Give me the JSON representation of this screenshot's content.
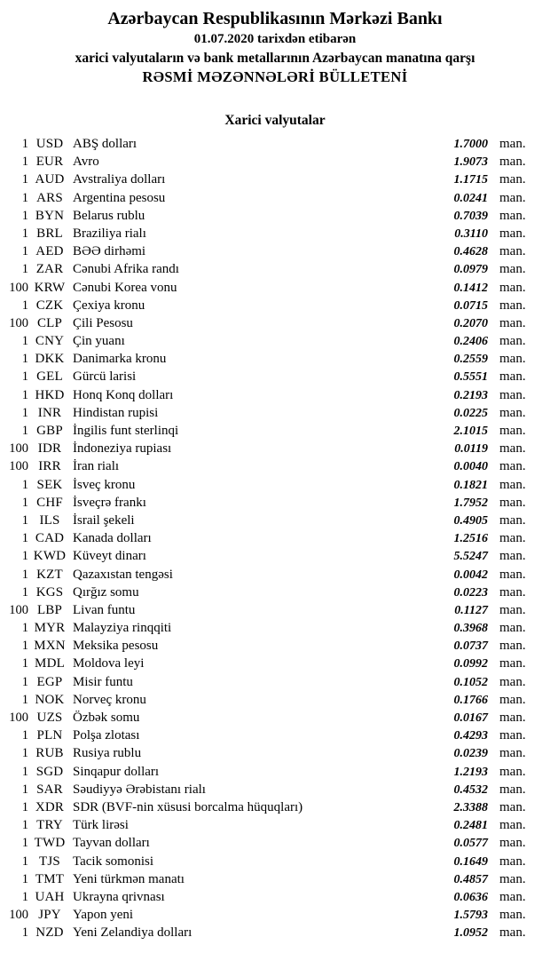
{
  "header": {
    "bank_name": "Azərbaycan Respublikasının Mərkəzi Bankı",
    "effective_date_line": "01.07.2020 tarixdən etibarən",
    "subtitle_line": "xarici valyutaların və bank metallarının Azərbaycan manatına qarşı",
    "bulletin_title": "RƏSMİ MƏZƏNNƏLƏRİ BÜLLETENİ"
  },
  "section": {
    "title": "Xarici valyutalar"
  },
  "table": {
    "unit_label": "man.",
    "rows": [
      {
        "qty": "1",
        "code": "USD",
        "name": "ABŞ dolları",
        "rate": "1.7000"
      },
      {
        "qty": "1",
        "code": "EUR",
        "name": "Avro",
        "rate": "1.9073"
      },
      {
        "qty": "1",
        "code": "AUD",
        "name": "Avstraliya dolları",
        "rate": "1.1715"
      },
      {
        "qty": "1",
        "code": "ARS",
        "name": "Argentina pesosu",
        "rate": "0.0241"
      },
      {
        "qty": "1",
        "code": "BYN",
        "name": "Belarus rublu",
        "rate": "0.7039"
      },
      {
        "qty": "1",
        "code": "BRL",
        "name": "Braziliya rialı",
        "rate": "0.3110"
      },
      {
        "qty": "1",
        "code": "AED",
        "name": "BƏƏ dirhəmi",
        "rate": "0.4628"
      },
      {
        "qty": "1",
        "code": "ZAR",
        "name": "Cənubi Afrika randı",
        "rate": "0.0979"
      },
      {
        "qty": "100",
        "code": "KRW",
        "name": "Cənubi Korea vonu",
        "rate": "0.1412"
      },
      {
        "qty": "1",
        "code": "CZK",
        "name": "Çexiya kronu",
        "rate": "0.0715"
      },
      {
        "qty": "100",
        "code": "CLP",
        "name": "Çili Pesosu",
        "rate": "0.2070"
      },
      {
        "qty": "1",
        "code": "CNY",
        "name": "Çin yuanı",
        "rate": "0.2406"
      },
      {
        "qty": "1",
        "code": "DKK",
        "name": "Danimarka kronu",
        "rate": "0.2559"
      },
      {
        "qty": "1",
        "code": "GEL",
        "name": "Gürcü larisi",
        "rate": "0.5551"
      },
      {
        "qty": "1",
        "code": "HKD",
        "name": "Honq Konq dolları",
        "rate": "0.2193"
      },
      {
        "qty": "1",
        "code": "INR",
        "name": "Hindistan rupisi",
        "rate": "0.0225"
      },
      {
        "qty": "1",
        "code": "GBP",
        "name": "İngilis funt sterlinqi",
        "rate": "2.1015"
      },
      {
        "qty": "100",
        "code": "IDR",
        "name": "İndoneziya rupiası",
        "rate": "0.0119"
      },
      {
        "qty": "100",
        "code": "IRR",
        "name": "İran rialı",
        "rate": "0.0040"
      },
      {
        "qty": "1",
        "code": "SEK",
        "name": "İsveç kronu",
        "rate": "0.1821"
      },
      {
        "qty": "1",
        "code": "CHF",
        "name": "İsveçrə frankı",
        "rate": "1.7952"
      },
      {
        "qty": "1",
        "code": "ILS",
        "name": "İsrail şekeli",
        "rate": "0.4905"
      },
      {
        "qty": "1",
        "code": "CAD",
        "name": "Kanada dolları",
        "rate": "1.2516"
      },
      {
        "qty": "1",
        "code": "KWD",
        "name": "Küveyt dinarı",
        "rate": "5.5247"
      },
      {
        "qty": "1",
        "code": "KZT",
        "name": "Qazaxıstan tengəsi",
        "rate": "0.0042"
      },
      {
        "qty": "1",
        "code": "KGS",
        "name": "Qırğız somu",
        "rate": "0.0223"
      },
      {
        "qty": "100",
        "code": "LBP",
        "name": "Livan funtu",
        "rate": "0.1127"
      },
      {
        "qty": "1",
        "code": "MYR",
        "name": "Malayziya rinqqiti",
        "rate": "0.3968"
      },
      {
        "qty": "1",
        "code": "MXN",
        "name": "Meksika pesosu",
        "rate": "0.0737"
      },
      {
        "qty": "1",
        "code": "MDL",
        "name": "Moldova leyi",
        "rate": "0.0992"
      },
      {
        "qty": "1",
        "code": "EGP",
        "name": "Misir funtu",
        "rate": "0.1052"
      },
      {
        "qty": "1",
        "code": "NOK",
        "name": "Norveç kronu",
        "rate": "0.1766"
      },
      {
        "qty": "100",
        "code": "UZS",
        "name": "Özbək somu",
        "rate": "0.0167"
      },
      {
        "qty": "1",
        "code": "PLN",
        "name": "Polşa zlotası",
        "rate": "0.4293"
      },
      {
        "qty": "1",
        "code": "RUB",
        "name": "Rusiya rublu",
        "rate": "0.0239"
      },
      {
        "qty": "1",
        "code": "SGD",
        "name": "Sinqapur dolları",
        "rate": "1.2193"
      },
      {
        "qty": "1",
        "code": "SAR",
        "name": "Səudiyyə Ərəbistanı rialı",
        "rate": "0.4532"
      },
      {
        "qty": "1",
        "code": "XDR",
        "name": "SDR (BVF-nin xüsusi borcalma hüquqları)",
        "rate": "2.3388"
      },
      {
        "qty": "1",
        "code": "TRY",
        "name": "Türk lirəsi",
        "rate": "0.2481"
      },
      {
        "qty": "1",
        "code": "TWD",
        "name": "Tayvan dolları",
        "rate": "0.0577"
      },
      {
        "qty": "1",
        "code": "TJS",
        "name": "Tacik somonisi",
        "rate": "0.1649"
      },
      {
        "qty": "1",
        "code": "TMT",
        "name": "Yeni türkmən manatı",
        "rate": "0.4857"
      },
      {
        "qty": "1",
        "code": "UAH",
        "name": "Ukrayna qrivnası",
        "rate": "0.0636"
      },
      {
        "qty": "100",
        "code": "JPY",
        "name": "Yapon yeni",
        "rate": "1.5793"
      },
      {
        "qty": "1",
        "code": "NZD",
        "name": "Yeni Zelandiya dolları",
        "rate": "1.0952"
      }
    ]
  },
  "colors": {
    "text": "#000000",
    "background": "#ffffff"
  }
}
